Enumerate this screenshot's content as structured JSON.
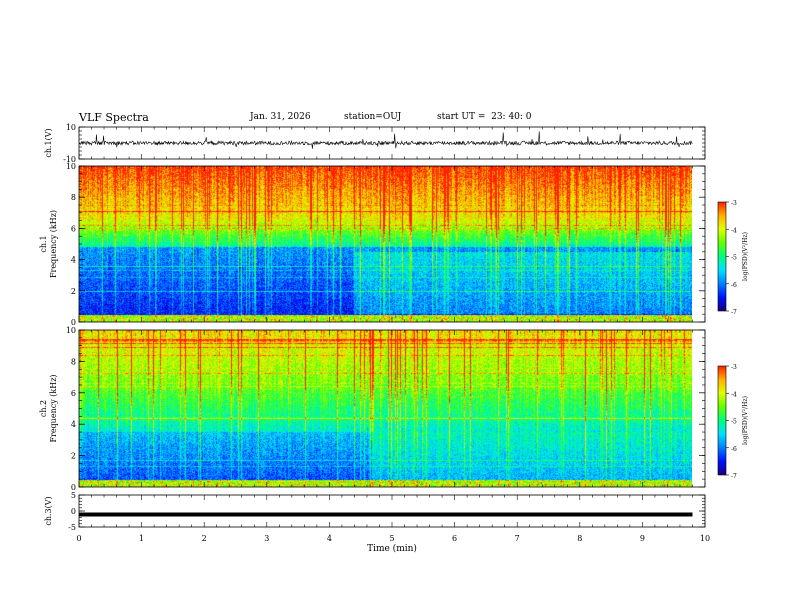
{
  "header": {
    "title": "VLF Spectra",
    "date": "Jan. 31, 2026",
    "station": "station=OUJ",
    "start": "start UT =  23: 40: 0"
  },
  "chart_data": [
    {
      "type": "line",
      "panel": "ch1-waveform",
      "ylabel": "ch.1(V)",
      "ylim": [
        -10,
        10
      ],
      "yticks": [
        10,
        -10
      ],
      "xlim": [
        0,
        10
      ],
      "trace_baseline": 0,
      "trace_color": "#000000"
    },
    {
      "type": "heatmap",
      "panel": "ch1-spectrogram",
      "ylabel_line1": "ch.1",
      "ylabel_line2": "Frequency (kHz)",
      "ylim": [
        0,
        10
      ],
      "yticks": [
        0,
        2,
        4,
        6,
        8,
        10
      ],
      "xlim": [
        0,
        9.8
      ],
      "colorbar": {
        "label": "log(PSD)(V²/Hz)",
        "min": -7,
        "max": -3,
        "ticks": [
          -3,
          -4,
          -5,
          -6,
          -7
        ]
      }
    },
    {
      "type": "heatmap",
      "panel": "ch2-spectrogram",
      "ylabel_line1": "ch.2",
      "ylabel_line2": "Frequency (kHz)",
      "ylim": [
        0,
        10
      ],
      "yticks": [
        0,
        2,
        4,
        6,
        8,
        10
      ],
      "xlim": [
        0,
        9.8
      ],
      "colorbar": {
        "label": "log(PSD)(V²/Hz)",
        "min": -7,
        "max": -3,
        "ticks": [
          -3,
          -4,
          -5,
          -6,
          -7
        ]
      }
    },
    {
      "type": "line",
      "panel": "ch3-waveform",
      "ylabel": "ch.3(V)",
      "ylim": [
        -5,
        5
      ],
      "yticks": [
        5,
        0,
        -5
      ],
      "xlim": [
        0,
        10
      ],
      "values": [
        [
          0,
          -1.1
        ],
        [
          9.8,
          -1.1
        ]
      ],
      "trace_color": "#000000"
    }
  ],
  "xaxis": {
    "label": "Time (min)",
    "ticks": [
      0,
      1,
      2,
      3,
      4,
      5,
      6,
      7,
      8,
      9,
      10
    ]
  },
  "colormap": [
    "#1a0080",
    "#0010ff",
    "#0080ff",
    "#00e0ff",
    "#00ff80",
    "#60ff00",
    "#e0ff00",
    "#ffb000",
    "#ff2000"
  ]
}
